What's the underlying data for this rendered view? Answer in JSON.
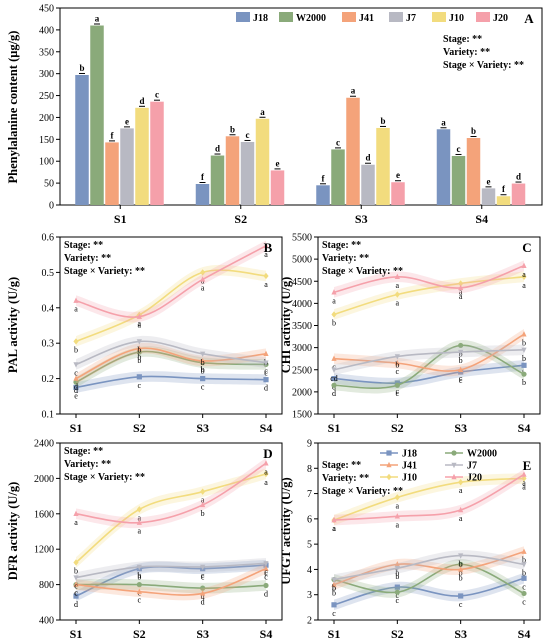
{
  "colors": {
    "J18": "#7a94c0",
    "W2000": "#8aaa7a",
    "J41": "#f4a37a",
    "J7": "#b8b9c3",
    "J10": "#f2dc7e",
    "J20": "#f5a0aa"
  },
  "stat_lines": [
    "Stage: **",
    "Variety: **",
    "Stage × Variety: **"
  ],
  "chart_data": [
    {
      "panel": "A",
      "type": "bar",
      "ylabel": "Phenylalanine content (μg/g)",
      "ylim": [
        0,
        450
      ],
      "yticks": [
        "0",
        "50",
        "100",
        "150",
        "200",
        "250",
        "300",
        "350",
        "400",
        "450"
      ],
      "categories": [
        "S1",
        "S2",
        "S3",
        "S4"
      ],
      "series": [
        {
          "name": "J18",
          "values": [
            297,
            48,
            45,
            173
          ],
          "letters": [
            "b",
            "f",
            "f",
            "a"
          ]
        },
        {
          "name": "W2000",
          "values": [
            410,
            113,
            127,
            112
          ],
          "letters": [
            "a",
            "d",
            "c",
            "c"
          ]
        },
        {
          "name": "J41",
          "values": [
            143,
            157,
            245,
            153
          ],
          "letters": [
            "f",
            "b",
            "a",
            "b"
          ]
        },
        {
          "name": "J7",
          "values": [
            175,
            144,
            92,
            38
          ],
          "letters": [
            "e",
            "c",
            "d",
            "e"
          ]
        },
        {
          "name": "J10",
          "values": [
            222,
            197,
            176,
            20
          ],
          "letters": [
            "d",
            "a",
            "b",
            "f"
          ]
        },
        {
          "name": "J20",
          "values": [
            236,
            79,
            52,
            49
          ],
          "letters": [
            "c",
            "e",
            "e",
            "d"
          ]
        }
      ]
    },
    {
      "panel": "B",
      "type": "line",
      "ylabel": "PAL activity (U/g)",
      "ylim": [
        0.1,
        0.6
      ],
      "yticks": [
        "0.1",
        "0.2",
        "0.3",
        "0.4",
        "0.5",
        "0.6"
      ],
      "categories": [
        "S1",
        "S2",
        "S3",
        "S4"
      ],
      "series": [
        {
          "name": "J18",
          "values": [
            0.175,
            0.205,
            0.2,
            0.197
          ],
          "letters": [
            "e",
            "c",
            "c",
            "d"
          ]
        },
        {
          "name": "W2000",
          "values": [
            0.19,
            0.275,
            0.245,
            0.24
          ],
          "letters": [
            "d",
            "b",
            "b",
            "c"
          ]
        },
        {
          "name": "J41",
          "values": [
            0.2,
            0.285,
            0.25,
            0.27
          ],
          "letters": [
            "d",
            "b",
            "b",
            "b"
          ]
        },
        {
          "name": "J7",
          "values": [
            0.24,
            0.305,
            0.27,
            0.245
          ],
          "letters": [
            "c",
            "b",
            "b",
            "c"
          ]
        },
        {
          "name": "J10",
          "values": [
            0.305,
            0.38,
            0.5,
            0.49
          ],
          "letters": [
            "b",
            "a",
            "a",
            "a"
          ]
        },
        {
          "name": "J20",
          "values": [
            0.42,
            0.375,
            0.48,
            0.575
          ],
          "letters": [
            "a",
            "a",
            "a",
            "a"
          ]
        }
      ]
    },
    {
      "panel": "C",
      "type": "line",
      "ylabel": "CHI activity (U/g)",
      "ylim": [
        1500,
        5500
      ],
      "yticks": [
        "1500",
        "2000",
        "2500",
        "3000",
        "3500",
        "4000",
        "4500",
        "5000",
        "5500"
      ],
      "categories": [
        "S1",
        "S2",
        "S3",
        "S4"
      ],
      "series": [
        {
          "name": "J18",
          "values": [
            2300,
            2200,
            2450,
            2600
          ],
          "letters": [
            "d",
            "c",
            "c",
            "b"
          ]
        },
        {
          "name": "W2000",
          "values": [
            2150,
            2150,
            3050,
            2400
          ],
          "letters": [
            "d",
            "c",
            "b",
            "b"
          ]
        },
        {
          "name": "J41",
          "values": [
            2750,
            2650,
            2500,
            3300
          ],
          "letters": [
            "c",
            "c",
            "c",
            "b"
          ]
        },
        {
          "name": "J7",
          "values": [
            2500,
            2800,
            2900,
            2950
          ],
          "letters": [
            "cd",
            "b",
            "b",
            "b"
          ]
        },
        {
          "name": "J10",
          "values": [
            3750,
            4200,
            4450,
            4600
          ],
          "letters": [
            "b",
            "a",
            "a",
            "a"
          ]
        },
        {
          "name": "J20",
          "values": [
            4250,
            4600,
            4350,
            4850
          ],
          "letters": [
            "a",
            "a",
            "a",
            "a"
          ]
        }
      ]
    },
    {
      "panel": "D",
      "type": "line",
      "ylabel": "DFR activity (U/g)",
      "ylim": [
        400,
        2400
      ],
      "yticks": [
        "400",
        "800",
        "1200",
        "1600",
        "2000",
        "2400"
      ],
      "categories": [
        "S1",
        "S2",
        "S3",
        "S4"
      ],
      "series": [
        {
          "name": "J18",
          "values": [
            670,
            980,
            980,
            1020
          ],
          "letters": [
            "d",
            "b",
            "c",
            "c"
          ]
        },
        {
          "name": "W2000",
          "values": [
            800,
            800,
            760,
            790
          ],
          "letters": [
            "c",
            "c",
            "d",
            "d"
          ]
        },
        {
          "name": "J41",
          "values": [
            800,
            720,
            700,
            980
          ],
          "letters": [
            "c",
            "c",
            "d",
            "c"
          ]
        },
        {
          "name": "J7",
          "values": [
            880,
            1000,
            1000,
            1040
          ],
          "letters": [
            "c",
            "b",
            "c",
            "c"
          ]
        },
        {
          "name": "J10",
          "values": [
            1050,
            1650,
            1850,
            2050
          ],
          "letters": [
            "b",
            "a",
            "a",
            "a"
          ]
        },
        {
          "name": "J20",
          "values": [
            1600,
            1500,
            1700,
            2170
          ],
          "letters": [
            "a",
            "a",
            "b",
            "a"
          ]
        }
      ]
    },
    {
      "panel": "E",
      "type": "line",
      "ylabel": "UFGT activity (U/g)",
      "ylim": [
        2,
        9
      ],
      "yticks": [
        "2",
        "3",
        "4",
        "5",
        "6",
        "7",
        "8",
        "9"
      ],
      "categories": [
        "S1",
        "S2",
        "S3",
        "S4"
      ],
      "series": [
        {
          "name": "J18",
          "values": [
            2.6,
            3.3,
            2.95,
            3.65
          ],
          "letters": [
            "c",
            "c",
            "c",
            "c"
          ]
        },
        {
          "name": "W2000",
          "values": [
            3.6,
            3.1,
            4.2,
            3.05
          ],
          "letters": [
            "b",
            "c",
            "b",
            "c"
          ]
        },
        {
          "name": "J41",
          "values": [
            3.4,
            4.2,
            4.0,
            4.7
          ],
          "letters": [
            "b",
            "b",
            "b",
            "b"
          ]
        },
        {
          "name": "J7",
          "values": [
            3.6,
            4.05,
            4.55,
            4.2
          ],
          "letters": [
            "b",
            "b",
            "b",
            "b"
          ]
        },
        {
          "name": "J10",
          "values": [
            5.95,
            6.85,
            7.45,
            7.6
          ],
          "letters": [
            "a",
            "a",
            "a",
            "a"
          ]
        },
        {
          "name": "J20",
          "values": [
            5.95,
            6.1,
            6.35,
            7.75
          ],
          "letters": [
            "a",
            "a",
            "a",
            "a"
          ]
        }
      ]
    }
  ],
  "line_legend": [
    "J18",
    "W2000",
    "J41",
    "J7",
    "J10",
    "J20"
  ]
}
